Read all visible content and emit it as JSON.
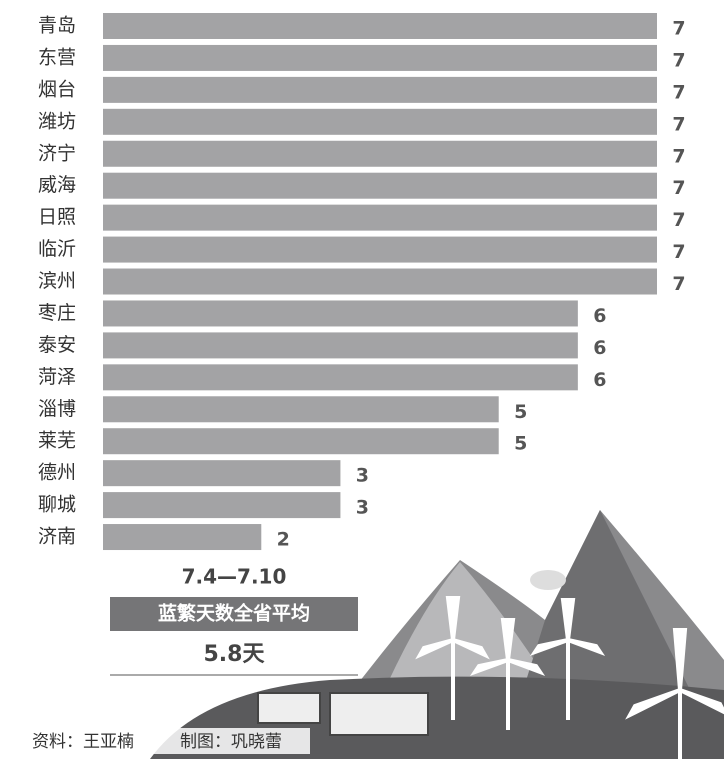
{
  "chart_data": {
    "type": "hbar",
    "categories": [
      "青岛",
      "东营",
      "烟台",
      "潍坊",
      "济宁",
      "威海",
      "日照",
      "临沂",
      "滨州",
      "枣庄",
      "泰安",
      "菏泽",
      "淄博",
      "莱芜",
      "德州",
      "聊城",
      "济南"
    ],
    "values": [
      7,
      7,
      7,
      7,
      7,
      7,
      7,
      7,
      7,
      6,
      6,
      6,
      5,
      5,
      3,
      3,
      2
    ],
    "color": "#a3a3a5",
    "annotations": {
      "period": "7.4—7.10",
      "caption": "蓝繁天数全省平均",
      "average": "5.8天"
    },
    "source": "资料：王亚楠",
    "credit": "制图：巩晓蕾"
  }
}
